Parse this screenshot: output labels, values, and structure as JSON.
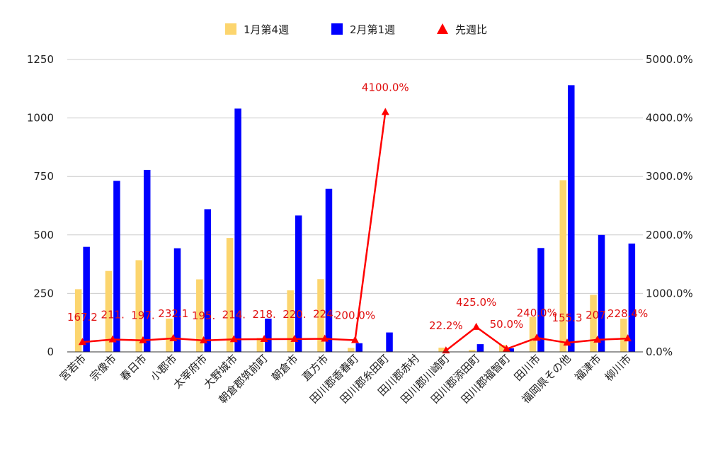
{
  "chart_data": {
    "type": "bar",
    "legend_position": "top",
    "grid": true,
    "categories": [
      "宮若市",
      "宗像市",
      "春日市",
      "小郡市",
      "太宰府市",
      "大野城市",
      "朝倉郡筑前町",
      "朝倉市",
      "直方市",
      "田川郡香春町",
      "田川郡糸田町",
      "田川郡赤村",
      "田川郡川崎町",
      "田川郡添田町",
      "田川郡福智町",
      "田川市",
      "福岡県その他",
      "福津市",
      "柳川市"
    ],
    "series": [
      {
        "name": "1月第4週",
        "kind": "bar",
        "axis": "left",
        "color": "#fcd56e",
        "values": [
          268,
          346,
          392,
          142,
          310,
          487,
          60,
          263,
          311,
          17,
          0,
          0,
          18,
          8,
          30,
          150,
          734,
          244,
          142
        ]
      },
      {
        "name": "2月第1週",
        "kind": "bar",
        "axis": "left",
        "color": "#0000ff",
        "values": [
          449,
          731,
          778,
          443,
          610,
          1040,
          142,
          583,
          697,
          37,
          83,
          0,
          0,
          33,
          15,
          444,
          1140,
          500,
          463
        ]
      },
      {
        "name": "先週比",
        "kind": "line",
        "axis": "right",
        "color": "#ff0000",
        "values": [
          167.2,
          211.3,
          197.1,
          232.1,
          195.2,
          214.2,
          218.3,
          220.1,
          224.2,
          200.0,
          4100.0,
          null,
          22.2,
          425.0,
          50.0,
          240.0,
          155.3,
          207.0,
          228.4
        ],
        "labels": [
          "167.2",
          "211.",
          "197.",
          "232.1",
          "195.",
          "214.",
          "218.",
          "220.",
          "224.",
          "200.0%",
          "4100.0%",
          "",
          "22.2%",
          "425.0%",
          "50.0%",
          "240.0%",
          "155.3",
          "207.",
          "228.4%"
        ]
      }
    ],
    "y_left": {
      "min": 0,
      "max": 1250,
      "ticks": [
        "0",
        "250",
        "500",
        "750",
        "1000",
        "1250"
      ]
    },
    "y_right": {
      "min": 0,
      "max": 5000,
      "ticks": [
        "0.0%",
        "1000.0%",
        "2000.0%",
        "3000.0%",
        "4000.0%",
        "5000.0%"
      ]
    }
  }
}
